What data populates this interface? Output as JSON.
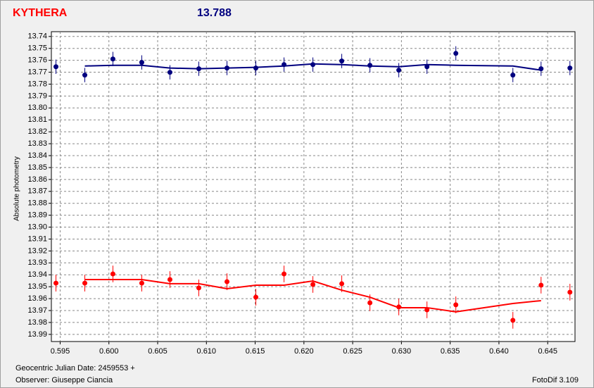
{
  "chart_data": {
    "type": "scatter",
    "title": "KYTHERA",
    "subtitle": "13.788",
    "ylabel": "Absolute photometry",
    "xlabel": "Geocentric Julian Date: 2459553 +",
    "observer": "Observer: Giuseppe Ciancia",
    "software": "FotoDif 3.109",
    "xlim": [
      0.5941,
      0.6478
    ],
    "ylim": [
      13.736,
      13.996
    ],
    "y_inverted": true,
    "grid": true,
    "xticks": [
      0.595,
      {
        "value": 0.6,
        "label": "0.600"
      },
      0.605,
      {
        "value": 0.61,
        "label": "0.610"
      },
      0.615,
      {
        "value": 0.62,
        "label": "0.620"
      },
      0.625,
      {
        "value": 0.63,
        "label": "0.630"
      },
      0.635,
      {
        "value": 0.64,
        "label": "0.640"
      },
      0.645
    ],
    "yticks": [
      13.74,
      13.75,
      13.76,
      13.77,
      13.78,
      13.79,
      {
        "value": 13.8,
        "label": "13.80"
      },
      13.81,
      13.82,
      13.83,
      13.84,
      13.85,
      13.86,
      13.87,
      13.88,
      13.89,
      {
        "value": 13.9,
        "label": "13.90"
      },
      13.91,
      13.92,
      13.93,
      13.94,
      13.95,
      13.96,
      13.97,
      13.98,
      13.99
    ],
    "x": [
      0.59457,
      0.59753,
      0.60041,
      0.60337,
      0.60626,
      0.60922,
      0.61211,
      0.61507,
      0.61796,
      0.62092,
      0.62388,
      0.62677,
      0.62973,
      0.63262,
      0.63558,
      0.64143,
      0.64432,
      0.64728
    ],
    "series": [
      {
        "color": "#00007f",
        "error": 0.006,
        "values": [
          13.7654,
          13.7724,
          13.7589,
          13.7618,
          13.7701,
          13.7671,
          13.7665,
          13.7665,
          13.7636,
          13.7636,
          13.7606,
          13.7642,
          13.7683,
          13.7654,
          13.7542,
          13.7724,
          13.7671,
          13.7665
        ],
        "fit": [
          null,
          13.7648,
          13.7642,
          13.7642,
          13.7665,
          13.7671,
          13.7665,
          13.7659,
          13.7648,
          13.763,
          13.7636,
          13.7648,
          13.7654,
          13.7636,
          13.7642,
          13.7648,
          13.7683,
          null
        ]
      },
      {
        "color": "#ff0000",
        "error": 0.007,
        "values": [
          13.947,
          13.947,
          13.9393,
          13.947,
          13.944,
          13.951,
          13.9458,
          13.9588,
          13.9393,
          13.9481,
          13.9475,
          13.9635,
          13.967,
          13.9694,
          13.9652,
          13.9782,
          13.9487,
          13.9546
        ],
        "fit": [
          null,
          13.944,
          13.944,
          13.944,
          13.9475,
          13.9475,
          13.9517,
          13.9487,
          13.9487,
          13.9452,
          13.9529,
          13.9588,
          13.9676,
          13.9676,
          13.9711,
          13.9641,
          13.9617,
          null
        ]
      }
    ]
  }
}
